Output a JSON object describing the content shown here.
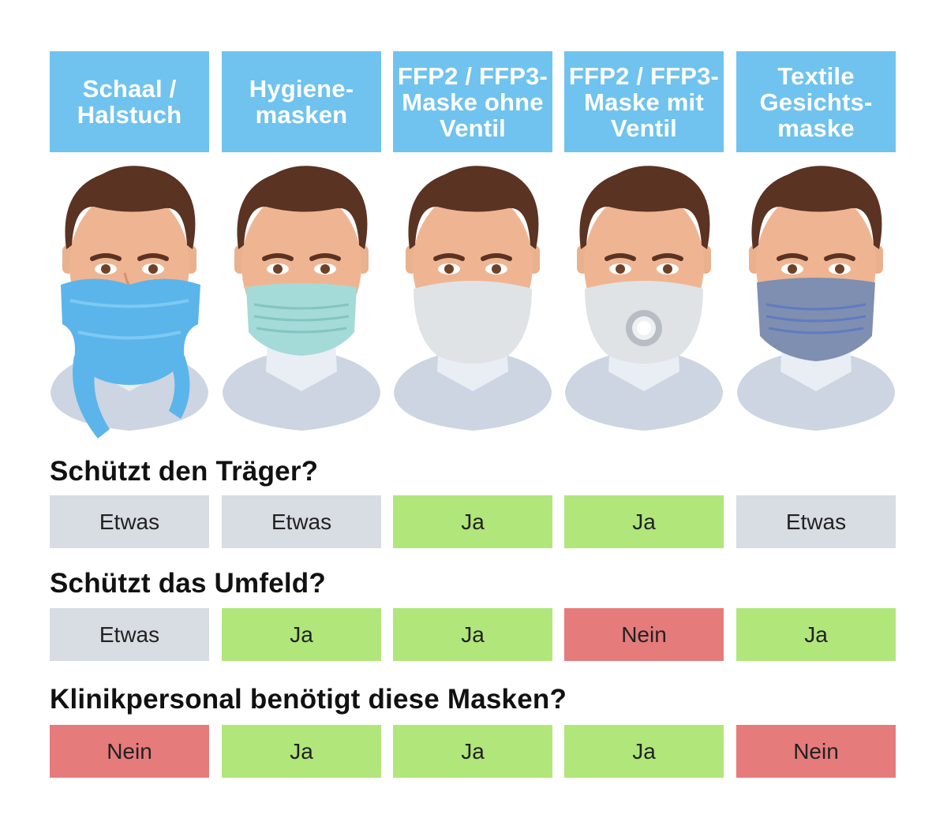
{
  "columns": [
    {
      "label": "Schaal /\nHalstuch",
      "mask": "scarf"
    },
    {
      "label": "Hygiene-\nmasken",
      "mask": "surgical"
    },
    {
      "label": "FFP2 / FFP3-\nMaske ohne\nVentil",
      "mask": "ffp"
    },
    {
      "label": "FFP2 / FFP3-\nMaske mit\nVentil",
      "mask": "ffp-valve"
    },
    {
      "label": "Textile\nGesichts-\nmaske",
      "mask": "textile"
    }
  ],
  "rows": [
    {
      "question": "Schützt den Träger?",
      "answers": [
        "Etwas",
        "Etwas",
        "Ja",
        "Ja",
        "Etwas"
      ]
    },
    {
      "question": "Schützt das Umfeld?",
      "answers": [
        "Etwas",
        "Ja",
        "Ja",
        "Nein",
        "Ja"
      ]
    },
    {
      "question": "Klinikpersonal benötigt diese Masken?",
      "answers": [
        "Nein",
        "Ja",
        "Ja",
        "Ja",
        "Nein"
      ]
    }
  ],
  "colors": {
    "header": "#6fc3ee",
    "etwas": "#d7dde2",
    "ja": "#b1e67b",
    "nein": "#e67b7c"
  }
}
